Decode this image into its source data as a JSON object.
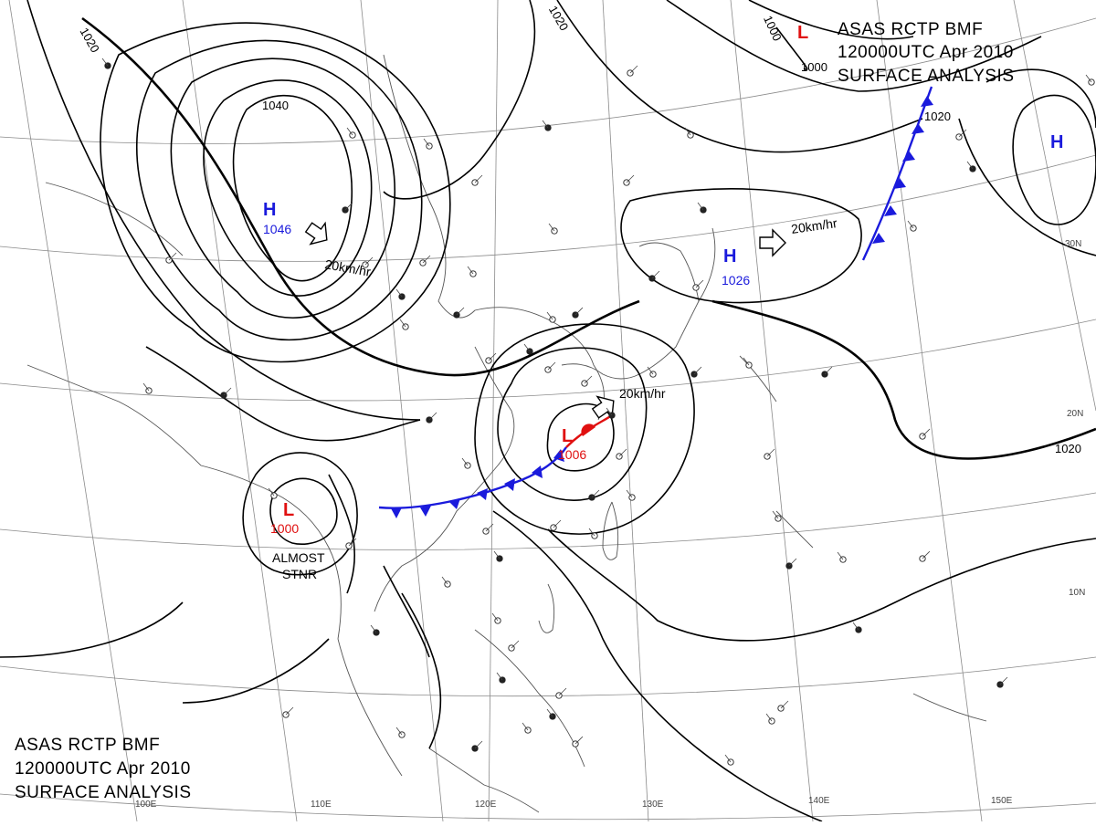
{
  "header_top": {
    "line1": "ASAS     RCTP    BMF",
    "line2": "120000UTC     Apr     2010",
    "line3": "SURFACE  ANALYSIS"
  },
  "header_bottom": {
    "line1": "ASAS     RCTP     BMF",
    "line2": "120000UTC     Apr     2010",
    "line3": "SURFACE  ANALYSIS"
  },
  "pressure_centers": [
    {
      "type": "H",
      "value": "1046",
      "color": "#1a1adc"
    },
    {
      "type": "H",
      "value": "1026",
      "color": "#1a1adc"
    },
    {
      "type": "H",
      "value": "",
      "color": "#1a1adc"
    },
    {
      "type": "L",
      "value": "1006",
      "color": "#e01010"
    },
    {
      "type": "L",
      "value": "1000",
      "color": "#e01010"
    },
    {
      "type": "L",
      "value": "",
      "color": "#e01010"
    }
  ],
  "isobar_labels": [
    "1020",
    "1020",
    "1000",
    "1000",
    "1040",
    "1020",
    "1020"
  ],
  "motion_labels": [
    "20km/hr",
    "20km/hr",
    "20km/hr"
  ],
  "notes": {
    "almost": "ALMOST",
    "stnr": "STNR"
  },
  "longitude_labels": [
    "100E",
    "110E",
    "120E",
    "130E",
    "140E",
    "150E"
  ],
  "latitude_labels": [
    "30N",
    "20N",
    "10N"
  ],
  "front_colors": {
    "cold": "#1a1adc",
    "warm": "#e01010"
  }
}
